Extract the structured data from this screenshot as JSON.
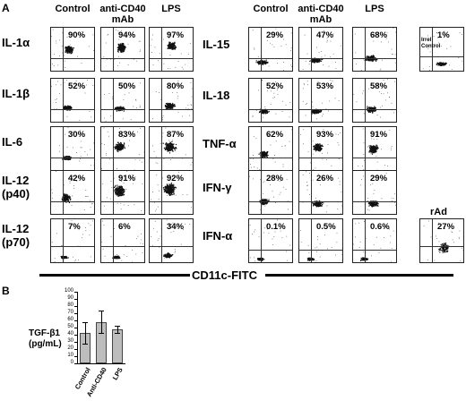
{
  "panel_a": {
    "letter": "A",
    "left_columns": [
      "Control",
      "anti-CD40\nmAb",
      "LPS"
    ],
    "right_columns": [
      "Control",
      "anti-CD40\nmAb",
      "LPS"
    ],
    "left_rows": [
      {
        "label": "IL-1α",
        "values": [
          "90%",
          "94%",
          "97%"
        ]
      },
      {
        "label": "IL-1β",
        "values": [
          "52%",
          "50%",
          "80%"
        ]
      },
      {
        "label": "IL-6",
        "values": [
          "30%",
          "83%",
          "87%"
        ]
      },
      {
        "label": "IL-12\n(p40)",
        "values": [
          "42%",
          "91%",
          "92%"
        ]
      },
      {
        "label": "IL-12\n(p70)",
        "values": [
          "7%",
          "6%",
          "34%"
        ]
      }
    ],
    "right_rows": [
      {
        "label": "IL-15",
        "values": [
          "29%",
          "47%",
          "68%"
        ]
      },
      {
        "label": "IL-18",
        "values": [
          "52%",
          "53%",
          "58%"
        ]
      },
      {
        "label": "TNF-α",
        "values": [
          "62%",
          "93%",
          "91%"
        ]
      },
      {
        "label": "IFN-γ",
        "values": [
          "28%",
          "26%",
          "29%"
        ]
      },
      {
        "label": "IFN-α",
        "values": [
          "0.1%",
          "0.5%",
          "0.6%"
        ]
      }
    ],
    "irrel_control": {
      "label": "Irrel\nControl",
      "value": "1%"
    },
    "rad": {
      "label": "rAd",
      "value": "27%"
    },
    "x_axis_label": "CD11c-FITC"
  },
  "panel_b": {
    "letter": "B",
    "ylabel": "TGF-β1\n(pg/mL)",
    "chart_data": {
      "type": "bar",
      "categories": [
        "Control",
        "Anti-CD40",
        "LPS"
      ],
      "values": [
        42,
        58,
        48
      ],
      "error": [
        15,
        16,
        5
      ],
      "ylim": [
        0,
        100
      ],
      "yticks": [
        "0",
        "10",
        "20",
        "30",
        "40",
        "50",
        "60",
        "70",
        "80",
        "90",
        "100"
      ]
    }
  }
}
